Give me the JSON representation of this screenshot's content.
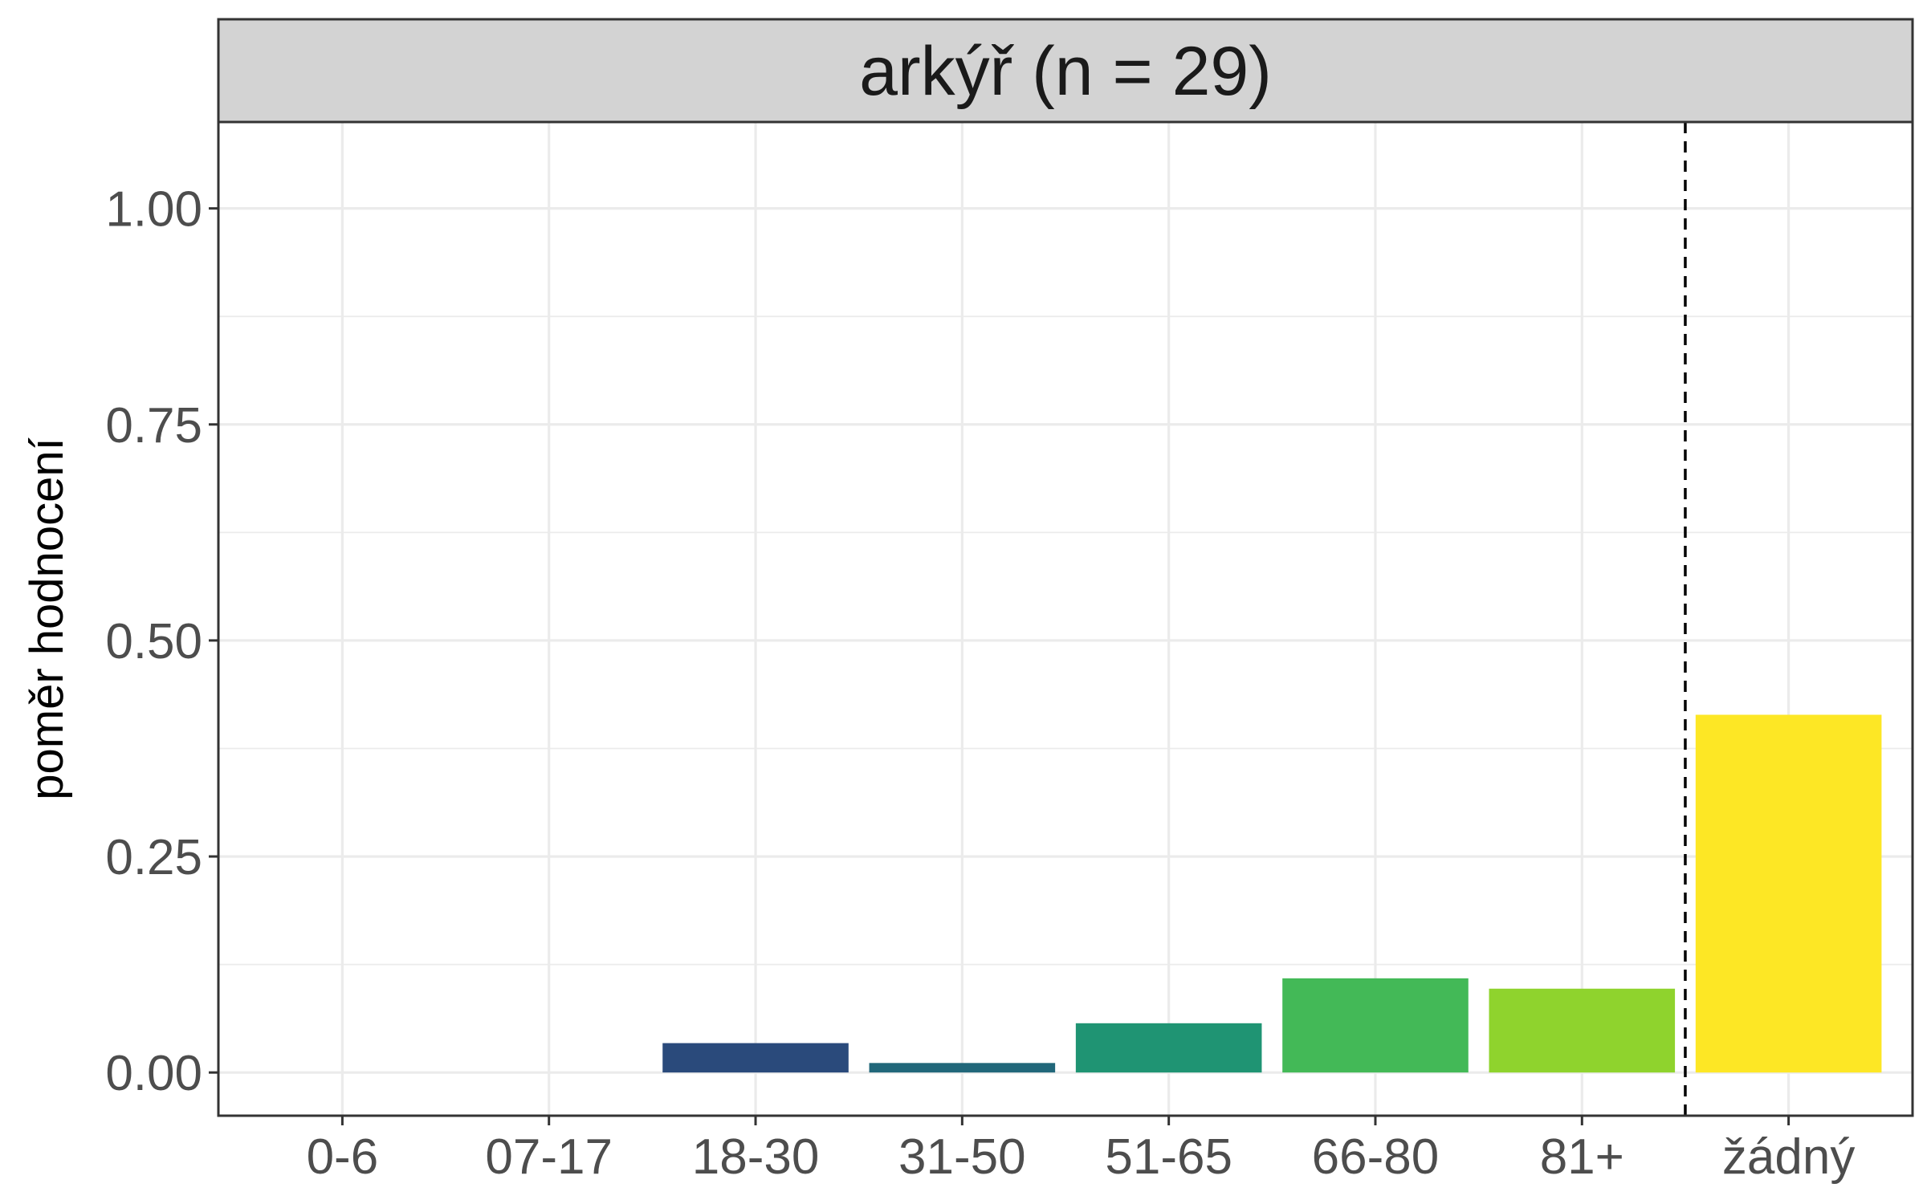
{
  "chart_data": {
    "type": "bar",
    "title": "arkýř (n = 29)",
    "xlabel": "",
    "ylabel": "poměr hodnocení",
    "categories": [
      "0-6",
      "07-17",
      "18-30",
      "31-50",
      "51-65",
      "66-80",
      "81+",
      "žádný"
    ],
    "values": [
      0,
      0,
      0.034,
      0.011,
      0.057,
      0.109,
      0.097,
      0.414
    ],
    "colors": [
      "#440154",
      "#46337e",
      "#2a4a7b",
      "#21677a",
      "#1f9473",
      "#43b957",
      "#8fd32d",
      "#fde725"
    ],
    "ylim": [
      -0.05,
      1.1
    ],
    "yticks": [
      0.0,
      0.25,
      0.5,
      0.75,
      1.0
    ],
    "ytick_labels": [
      "0.00",
      "0.25",
      "0.50",
      "0.75",
      "1.00"
    ],
    "reference_line": {
      "between": [
        "81+",
        "žádný"
      ],
      "style": "dashed"
    },
    "grid": true,
    "legend": "none"
  }
}
